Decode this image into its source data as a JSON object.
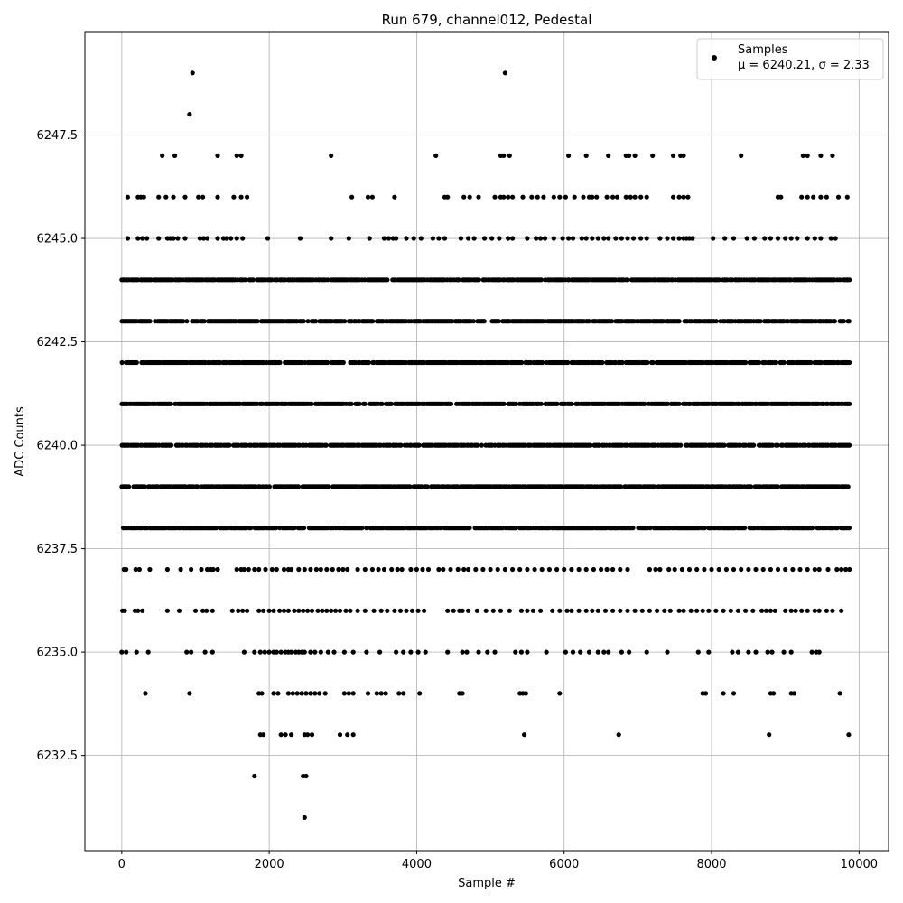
{
  "chart_data": {
    "type": "scatter",
    "title": "Run 679, channel012, Pedestal",
    "xlabel": "Sample #",
    "ylabel": "ADC Counts",
    "xlim": [
      -500,
      10400
    ],
    "ylim": [
      6230.2,
      6250.0
    ],
    "xticks": [
      0,
      2000,
      4000,
      6000,
      8000,
      10000
    ],
    "xtick_labels": [
      "0",
      "2000",
      "4000",
      "6000",
      "8000",
      "10000"
    ],
    "yticks": [
      6232.5,
      6235.0,
      6237.5,
      6240.0,
      6242.5,
      6245.0,
      6247.5
    ],
    "ytick_labels": [
      "6232.5",
      "6235.0",
      "6237.5",
      "6240.0",
      "6242.5",
      "6245.0",
      "6247.5"
    ],
    "grid": true,
    "legend_position": "top-right",
    "marker_color": "#000000",
    "series": [
      {
        "name": "Samples",
        "stats_label": "μ = 6240.21, σ = 2.33",
        "mu": 6240.21,
        "sigma": 2.33,
        "n_samples": 10000,
        "levels": [
          {
            "y": 6238,
            "range": [
              0,
              9880
            ]
          },
          {
            "y": 6239,
            "range": [
              0,
              9880
            ]
          },
          {
            "y": 6240,
            "range": [
              0,
              9880
            ]
          },
          {
            "y": 6241,
            "range": [
              0,
              9880
            ]
          },
          {
            "y": 6242,
            "range": [
              0,
              9880
            ]
          },
          {
            "y": 6243,
            "range": [
              0,
              9880
            ]
          },
          {
            "y": 6244,
            "range": [
              0,
              9880
            ]
          },
          {
            "y": 6237,
            "x": [
              30,
              60,
              190,
              240,
              380,
              620,
              800,
              940,
              1080,
              1160,
              1210,
              1240,
              1300,
              1560,
              1620,
              1660,
              1720,
              1800,
              1860,
              1950,
              2040,
              2100,
              2200,
              2260,
              2300,
              2400,
              2480,
              2560,
              2640,
              2700,
              2780,
              2860,
              2940,
              3000,
              3060,
              3200,
              3300,
              3400,
              3480,
              3560,
              3660,
              3740,
              3800,
              3920,
              4000,
              4080,
              4160,
              4300,
              4360,
              4460,
              4560,
              4640,
              4700,
              4800,
              4900,
              5000,
              5100,
              5200,
              5300,
              5400,
              5500,
              5600,
              5700,
              5800,
              5900,
              6000,
              6100,
              6200,
              6300,
              6400,
              6500,
              6580,
              6660,
              6760,
              6860,
              7160,
              7240,
              7300,
              7420,
              7500,
              7600,
              7700,
              7800,
              7900,
              8000,
              8100,
              8200,
              8300,
              8400,
              8500,
              8600,
              8700,
              8800,
              8900,
              9000,
              9100,
              9200,
              9300,
              9400,
              9460,
              9580,
              9700,
              9760,
              9820,
              9870
            ]
          },
          {
            "y": 6236,
            "x": [
              10,
              40,
              180,
              220,
              280,
              620,
              780,
              1000,
              1100,
              1150,
              1230,
              1500,
              1580,
              1640,
              1700,
              1860,
              1920,
              2000,
              2060,
              2140,
              2200,
              2260,
              2340,
              2400,
              2460,
              2520,
              2580,
              2660,
              2720,
              2780,
              2840,
              2900,
              2960,
              3040,
              3100,
              3200,
              3300,
              3420,
              3520,
              3600,
              3700,
              3780,
              3860,
              3940,
              4020,
              4100,
              4420,
              4500,
              4580,
              4620,
              4700,
              4820,
              4940,
              5040,
              5140,
              5260,
              5420,
              5500,
              5580,
              5680,
              5840,
              5940,
              6040,
              6100,
              6200,
              6300,
              6380,
              6460,
              6560,
              6660,
              6760,
              6860,
              6960,
              7060,
              7160,
              7260,
              7360,
              7440,
              7560,
              7620,
              7720,
              7800,
              7880,
              7960,
              8060,
              8160,
              8260,
              8360,
              8460,
              8560,
              8680,
              8740,
              8800,
              8860,
              9000,
              9080,
              9140,
              9220,
              9300,
              9400,
              9460,
              9560,
              9640,
              9760
            ]
          },
          {
            "y": 6245,
            "x": [
              80,
              220,
              280,
              340,
              500,
              620,
              660,
              700,
              760,
              860,
              1060,
              1110,
              1160,
              1300,
              1380,
              1420,
              1480,
              1560,
              1640,
              1980,
              2420,
              2840,
              3080,
              3360,
              3560,
              3620,
              3680,
              3720,
              3860,
              3960,
              4060,
              4220,
              4300,
              4380,
              4600,
              4700,
              4780,
              4920,
              5020,
              5120,
              5240,
              5300,
              5500,
              5620,
              5680,
              5740,
              5860,
              5980,
              6060,
              6120,
              6240,
              6300,
              6380,
              6460,
              6540,
              6600,
              6700,
              6780,
              6860,
              6940,
              7040,
              7120,
              7300,
              7400,
              7480,
              7560,
              7620,
              7660,
              7700,
              7740,
              8020,
              8180,
              8300,
              8480,
              8580,
              8720,
              8800,
              8900,
              9000,
              9080,
              9160,
              9300,
              9400,
              9480,
              9620,
              9680
            ]
          },
          {
            "y": 6246,
            "x": [
              80,
              220,
              260,
              300,
              500,
              600,
              700,
              860,
              1040,
              1100,
              1300,
              1520,
              1620,
              1700,
              3120,
              3340,
              3400,
              3700,
              4380,
              4420,
              4640,
              4720,
              4840,
              5060,
              5140,
              5180,
              5240,
              5300,
              5440,
              5560,
              5640,
              5720,
              5860,
              5940,
              6020,
              6140,
              6260,
              6340,
              6380,
              6440,
              6580,
              6660,
              6720,
              6840,
              6900,
              6960,
              7040,
              7120,
              7480,
              7560,
              7620,
              7680,
              8900,
              8940,
              9220,
              9300,
              9380,
              9480,
              9560,
              9720,
              9840
            ]
          },
          {
            "y": 6235,
            "x": [
              0,
              60,
              200,
              360,
              880,
              940,
              1130,
              1230,
              1660,
              1800,
              1880,
              1940,
              2000,
              2060,
              2100,
              2160,
              2220,
              2260,
              2300,
              2360,
              2400,
              2440,
              2480,
              2560,
              2620,
              2700,
              2800,
              2880,
              3020,
              3140,
              3320,
              3500,
              3720,
              3820,
              3920,
              4020,
              4120,
              4420,
              4620,
              4680,
              4840,
              4960,
              5060,
              5340,
              5420,
              5500,
              5760,
              6020,
              6120,
              6220,
              6340,
              6460,
              6540,
              6600,
              6780,
              6880,
              7120,
              7400,
              7820,
              7960,
              8280,
              8360,
              8500,
              8600,
              8760,
              8820,
              8980,
              9080,
              9360,
              9420,
              9460
            ]
          },
          {
            "y": 6247,
            "x": [
              550,
              720,
              1300,
              1560,
              1620,
              2840,
              4260,
              5140,
              5180,
              5260,
              6060,
              6300,
              6600,
              6840,
              6880,
              6960,
              7200,
              7480,
              7580,
              7620,
              8400,
              9240,
              9300,
              9480,
              9640
            ]
          },
          {
            "y": 6234,
            "x": [
              320,
              920,
              1860,
              1900,
              2060,
              2120,
              2260,
              2320,
              2380,
              2440,
              2500,
              2560,
              2620,
              2680,
              2760,
              3020,
              3080,
              3140,
              3340,
              3460,
              3520,
              3580,
              3760,
              3820,
              4040,
              4580,
              4620,
              5400,
              5440,
              5480,
              5940,
              7880,
              7920,
              8160,
              8300,
              8800,
              8840,
              9080,
              9120,
              9740
            ]
          },
          {
            "y": 6233,
            "x": [
              1880,
              1920,
              2160,
              2220,
              2300,
              2480,
              2520,
              2580,
              2960,
              3060,
              3140,
              5460,
              6740,
              8780,
              9860
            ]
          },
          {
            "y": 6232,
            "x": [
              1800,
              2460,
              2500
            ]
          },
          {
            "y": 6231,
            "x": [
              2480
            ]
          },
          {
            "y": 6248,
            "x": [
              920
            ]
          },
          {
            "y": 6249,
            "x": [
              960,
              5200
            ]
          }
        ]
      }
    ]
  }
}
